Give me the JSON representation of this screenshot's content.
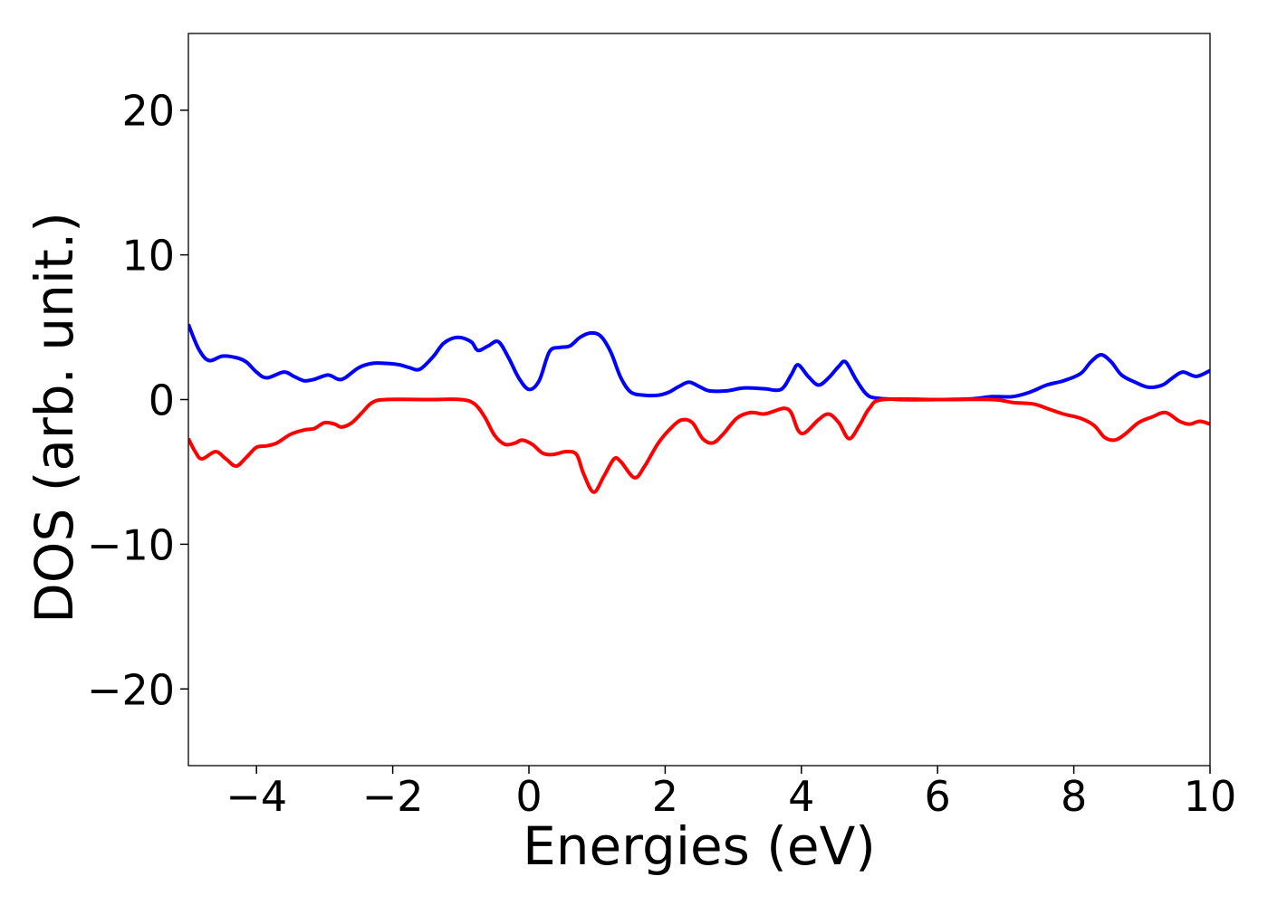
{
  "chart_data": {
    "type": "line",
    "xlabel": "Energies (eV)",
    "ylabel": "DOS (arb. unit.)",
    "xlim": [
      -5,
      10
    ],
    "ylim": [
      -25.3,
      25.3
    ],
    "x_ticks": [
      -4,
      -2,
      0,
      2,
      4,
      6,
      8,
      10
    ],
    "y_ticks": [
      -20,
      -10,
      0,
      10,
      20
    ],
    "x_tick_labels": [
      "−4",
      "−2",
      "0",
      "2",
      "4",
      "6",
      "8",
      "10"
    ],
    "y_tick_labels": [
      "−20",
      "−10",
      "0",
      "10",
      "20"
    ],
    "grid": false,
    "series": [
      {
        "color": "#0000ff",
        "points": [
          [
            -5.0,
            5.2
          ],
          [
            -4.85,
            3.5
          ],
          [
            -4.7,
            2.7
          ],
          [
            -4.5,
            3.0
          ],
          [
            -4.3,
            2.9
          ],
          [
            -4.15,
            2.6
          ],
          [
            -4.0,
            1.9
          ],
          [
            -3.85,
            1.5
          ],
          [
            -3.6,
            1.9
          ],
          [
            -3.45,
            1.6
          ],
          [
            -3.3,
            1.3
          ],
          [
            -3.15,
            1.4
          ],
          [
            -2.95,
            1.7
          ],
          [
            -2.8,
            1.4
          ],
          [
            -2.7,
            1.5
          ],
          [
            -2.5,
            2.2
          ],
          [
            -2.3,
            2.5
          ],
          [
            -2.1,
            2.5
          ],
          [
            -1.9,
            2.4
          ],
          [
            -1.75,
            2.2
          ],
          [
            -1.6,
            2.1
          ],
          [
            -1.4,
            3.0
          ],
          [
            -1.25,
            3.9
          ],
          [
            -1.05,
            4.3
          ],
          [
            -0.85,
            4.0
          ],
          [
            -0.75,
            3.4
          ],
          [
            -0.6,
            3.7
          ],
          [
            -0.45,
            4.0
          ],
          [
            -0.3,
            2.9
          ],
          [
            -0.15,
            1.5
          ],
          [
            0.0,
            0.7
          ],
          [
            0.15,
            1.3
          ],
          [
            0.3,
            3.3
          ],
          [
            0.45,
            3.6
          ],
          [
            0.6,
            3.7
          ],
          [
            0.75,
            4.3
          ],
          [
            0.9,
            4.6
          ],
          [
            1.05,
            4.4
          ],
          [
            1.2,
            3.3
          ],
          [
            1.35,
            1.5
          ],
          [
            1.5,
            0.5
          ],
          [
            1.7,
            0.3
          ],
          [
            1.9,
            0.3
          ],
          [
            2.05,
            0.5
          ],
          [
            2.2,
            0.9
          ],
          [
            2.35,
            1.2
          ],
          [
            2.5,
            0.9
          ],
          [
            2.65,
            0.6
          ],
          [
            2.9,
            0.6
          ],
          [
            3.15,
            0.8
          ],
          [
            3.45,
            0.75
          ],
          [
            3.7,
            0.7
          ],
          [
            3.85,
            1.7
          ],
          [
            3.95,
            2.4
          ],
          [
            4.1,
            1.6
          ],
          [
            4.25,
            1.0
          ],
          [
            4.4,
            1.5
          ],
          [
            4.55,
            2.3
          ],
          [
            4.65,
            2.6
          ],
          [
            4.8,
            1.4
          ],
          [
            4.95,
            0.4
          ],
          [
            5.1,
            0.1
          ],
          [
            5.5,
            0.0
          ],
          [
            6.0,
            0.0
          ],
          [
            6.5,
            0.05
          ],
          [
            6.8,
            0.2
          ],
          [
            7.1,
            0.2
          ],
          [
            7.35,
            0.5
          ],
          [
            7.6,
            1.0
          ],
          [
            7.85,
            1.3
          ],
          [
            8.1,
            1.8
          ],
          [
            8.25,
            2.6
          ],
          [
            8.4,
            3.1
          ],
          [
            8.55,
            2.6
          ],
          [
            8.7,
            1.7
          ],
          [
            8.9,
            1.2
          ],
          [
            9.1,
            0.85
          ],
          [
            9.3,
            1.0
          ],
          [
            9.45,
            1.5
          ],
          [
            9.6,
            1.9
          ],
          [
            9.8,
            1.6
          ],
          [
            10.0,
            2.0
          ]
        ]
      },
      {
        "color": "#ff0000",
        "points": [
          [
            -5.0,
            -2.7
          ],
          [
            -4.9,
            -3.6
          ],
          [
            -4.8,
            -4.1
          ],
          [
            -4.6,
            -3.6
          ],
          [
            -4.45,
            -4.1
          ],
          [
            -4.3,
            -4.6
          ],
          [
            -4.15,
            -4.0
          ],
          [
            -4.0,
            -3.3
          ],
          [
            -3.85,
            -3.2
          ],
          [
            -3.7,
            -3.0
          ],
          [
            -3.5,
            -2.4
          ],
          [
            -3.3,
            -2.1
          ],
          [
            -3.15,
            -2.0
          ],
          [
            -3.0,
            -1.6
          ],
          [
            -2.85,
            -1.7
          ],
          [
            -2.75,
            -1.9
          ],
          [
            -2.6,
            -1.6
          ],
          [
            -2.45,
            -0.9
          ],
          [
            -2.3,
            -0.2
          ],
          [
            -2.1,
            0.0
          ],
          [
            -1.5,
            0.0
          ],
          [
            -1.0,
            0.0
          ],
          [
            -0.8,
            -0.3
          ],
          [
            -0.65,
            -1.2
          ],
          [
            -0.5,
            -2.5
          ],
          [
            -0.35,
            -3.1
          ],
          [
            -0.2,
            -3.0
          ],
          [
            -0.1,
            -2.8
          ],
          [
            0.05,
            -3.1
          ],
          [
            0.2,
            -3.7
          ],
          [
            0.35,
            -3.8
          ],
          [
            0.55,
            -3.6
          ],
          [
            0.7,
            -3.8
          ],
          [
            0.8,
            -5.1
          ],
          [
            0.95,
            -6.4
          ],
          [
            1.1,
            -5.3
          ],
          [
            1.25,
            -4.1
          ],
          [
            1.35,
            -4.3
          ],
          [
            1.55,
            -5.4
          ],
          [
            1.7,
            -4.6
          ],
          [
            1.9,
            -3.0
          ],
          [
            2.1,
            -1.9
          ],
          [
            2.25,
            -1.4
          ],
          [
            2.4,
            -1.6
          ],
          [
            2.55,
            -2.7
          ],
          [
            2.7,
            -3.0
          ],
          [
            2.85,
            -2.4
          ],
          [
            3.05,
            -1.3
          ],
          [
            3.25,
            -0.9
          ],
          [
            3.45,
            -1.0
          ],
          [
            3.6,
            -0.8
          ],
          [
            3.75,
            -0.6
          ],
          [
            3.85,
            -0.9
          ],
          [
            3.95,
            -2.1
          ],
          [
            4.05,
            -2.3
          ],
          [
            4.25,
            -1.4
          ],
          [
            4.4,
            -1.0
          ],
          [
            4.55,
            -1.6
          ],
          [
            4.7,
            -2.7
          ],
          [
            4.85,
            -1.8
          ],
          [
            5.0,
            -0.6
          ],
          [
            5.2,
            0.0
          ],
          [
            6.0,
            0.0
          ],
          [
            6.8,
            0.0
          ],
          [
            7.1,
            -0.2
          ],
          [
            7.4,
            -0.3
          ],
          [
            7.6,
            -0.6
          ],
          [
            7.85,
            -1.0
          ],
          [
            8.1,
            -1.3
          ],
          [
            8.3,
            -1.8
          ],
          [
            8.45,
            -2.6
          ],
          [
            8.6,
            -2.8
          ],
          [
            8.75,
            -2.4
          ],
          [
            8.95,
            -1.6
          ],
          [
            9.15,
            -1.2
          ],
          [
            9.35,
            -0.9
          ],
          [
            9.55,
            -1.5
          ],
          [
            9.7,
            -1.7
          ],
          [
            9.85,
            -1.5
          ],
          [
            10.0,
            -1.7
          ]
        ]
      }
    ]
  }
}
